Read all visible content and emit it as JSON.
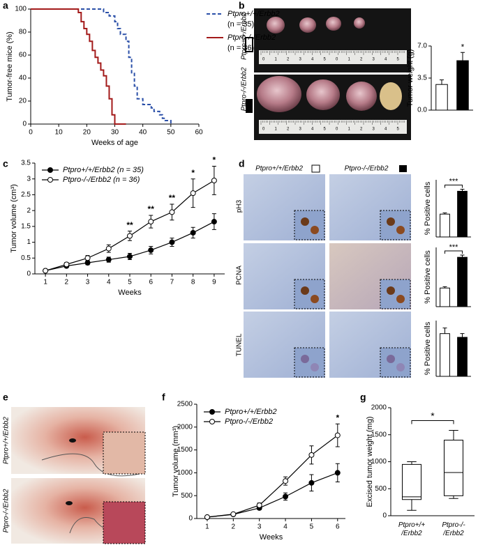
{
  "figure": {
    "panel_labels": [
      "a",
      "b",
      "c",
      "d",
      "e",
      "f",
      "g"
    ],
    "b_row_labels": [
      "Ptpro+/+/Erbb2",
      "Ptpro-/-/Erbb2"
    ],
    "ruler_labels": [
      "0",
      "1",
      "2",
      "3",
      "4",
      "5",
      "0",
      "1",
      "2",
      "3",
      "4",
      "5"
    ],
    "d_column_labels": [
      "Ptpro+/+/Erbb2",
      "Ptpro-/-/Erbb2"
    ],
    "d_row_labels": [
      "pH3",
      "PCNA",
      "TUNEL"
    ],
    "e_row_labels": [
      "Ptpro+/+/Erbb2",
      "Ptpro-/-/Erbb2"
    ]
  },
  "chart_data": [
    {
      "type": "line",
      "step": true,
      "x_label": "Weeks of age",
      "y_label": "Tumor-free mice (%)",
      "xlim": [
        0,
        60
      ],
      "xticks": [
        0,
        10,
        20,
        30,
        40,
        50,
        60
      ],
      "ylim": [
        0,
        100
      ],
      "yticks": [
        0,
        20,
        40,
        60,
        80,
        100
      ],
      "legend": "upper right",
      "series": [
        {
          "name": "Ptpro+/+/Erbb2",
          "n_label": "(n = 35)",
          "color": "#2a4fa8",
          "line_style": "dashed",
          "x": [
            0,
            26,
            28,
            30,
            31,
            32,
            34,
            35,
            36,
            37,
            38,
            40,
            43,
            44,
            46,
            47,
            48,
            50
          ],
          "values": [
            100,
            97,
            94,
            89,
            83,
            78,
            72,
            58,
            44,
            33,
            22,
            17,
            14,
            11,
            8,
            5,
            3,
            0
          ]
        },
        {
          "name": "Ptpro-/-/Erbb2",
          "n_label": "(n = 36)",
          "color": "#a31a1a",
          "line_style": "solid",
          "x": [
            0,
            17,
            18,
            19,
            20,
            21,
            22,
            23,
            24,
            25,
            26,
            27,
            28,
            29,
            30,
            34
          ],
          "values": [
            100,
            97,
            89,
            83,
            78,
            72,
            64,
            58,
            53,
            47,
            42,
            33,
            22,
            8,
            0,
            0
          ]
        }
      ]
    },
    {
      "type": "bar",
      "y_label": "Tumor weight (g)",
      "categories": [
        null,
        null
      ],
      "values": [
        2.8,
        5.4
      ],
      "errors": [
        0.5,
        0.9
      ],
      "colors": [
        "#ffffff",
        "#000000"
      ],
      "ylim": [
        0,
        7
      ],
      "yticks": [
        {
          "value": 0,
          "label": "0.0"
        },
        3.5,
        {
          "value": 7,
          "label": "7.0"
        }
      ],
      "annotations": [
        null,
        "*"
      ]
    },
    {
      "type": "line",
      "x_label": "Weeks",
      "y_label": "Tumor volume (cm³)",
      "x": [
        1,
        2,
        3,
        4,
        5,
        6,
        7,
        8,
        9
      ],
      "xlim": [
        0.5,
        9.5
      ],
      "xticks": [
        1,
        2,
        3,
        4,
        5,
        6,
        7,
        8,
        9
      ],
      "ylim": [
        0,
        3.5
      ],
      "yticks": [
        0,
        0.5,
        1,
        1.5,
        2,
        2.5,
        3,
        3.5
      ],
      "legend": "upper left",
      "series": [
        {
          "name": "Ptpro+/+/Erbb2 (n = 35)",
          "color": "#000000",
          "marker": "filled",
          "values": [
            0.1,
            0.25,
            0.35,
            0.45,
            0.55,
            0.75,
            1.0,
            1.3,
            1.65
          ],
          "errors": [
            0.02,
            0.05,
            0.06,
            0.08,
            0.1,
            0.12,
            0.13,
            0.17,
            0.25
          ]
        },
        {
          "name": "Ptpro-/-/Erbb2 (n = 36)",
          "color": "#000000",
          "marker": "open",
          "values": [
            0.1,
            0.3,
            0.5,
            0.8,
            1.2,
            1.65,
            1.95,
            2.55,
            2.95
          ],
          "errors": [
            0.02,
            0.06,
            0.08,
            0.12,
            0.15,
            0.2,
            0.25,
            0.45,
            0.45
          ]
        }
      ],
      "annotations": [
        null,
        null,
        null,
        null,
        "**",
        "**",
        "**",
        "*",
        "*"
      ]
    },
    {
      "type": "bar",
      "y_label": "% Positive cells",
      "categories": [
        null,
        null
      ],
      "values": [
        5.6,
        11.2
      ],
      "errors": [
        0.3,
        0.5
      ],
      "colors": [
        "#ffffff",
        "#000000"
      ],
      "ylim": [
        0,
        14
      ],
      "bracket_annotation": "***"
    },
    {
      "type": "bar",
      "y_label": "% Positive cells",
      "categories": [
        null,
        null
      ],
      "values": [
        8.5,
        22.5
      ],
      "errors": [
        0.6,
        1.0
      ],
      "colors": [
        "#ffffff",
        "#000000"
      ],
      "ylim": [
        0,
        27
      ],
      "bracket_annotation": "***"
    },
    {
      "type": "bar",
      "y_label": "% Positive cells",
      "categories": [
        null,
        null
      ],
      "values": [
        4.6,
        4.2
      ],
      "errors": [
        0.6,
        0.4
      ],
      "colors": [
        "#ffffff",
        "#000000"
      ],
      "ylim": [
        0,
        6
      ]
    },
    {
      "type": "line",
      "x_label": "Weeks",
      "y_label": "Tumor volume (mm³)",
      "x": [
        1,
        2,
        3,
        4,
        5,
        6
      ],
      "xlim": [
        0.6,
        6.3
      ],
      "xticks": [
        1,
        2,
        3,
        4,
        5,
        6
      ],
      "ylim": [
        0,
        2500
      ],
      "yticks": [
        0,
        500,
        1000,
        1500,
        2000,
        2500
      ],
      "legend": "upper left",
      "series": [
        {
          "name": "Ptpro+/+/Erbb2",
          "color": "#000000",
          "marker": "filled",
          "values": [
            30,
            90,
            230,
            480,
            780,
            1000
          ],
          "errors": [
            10,
            15,
            40,
            80,
            180,
            200
          ]
        },
        {
          "name": "Ptpro-/-/Erbb2",
          "color": "#000000",
          "marker": "open",
          "values": [
            30,
            95,
            290,
            820,
            1390,
            1820
          ],
          "errors": [
            10,
            15,
            50,
            90,
            200,
            250
          ]
        }
      ],
      "annotations": [
        null,
        null,
        null,
        null,
        null,
        "*"
      ]
    },
    {
      "type": "box",
      "y_label": "Excised tumor weight (mg)",
      "categories": [
        "Ptpro+/+\n/Erbb2",
        "Ptpro-/-\n/Erbb2"
      ],
      "boxes": [
        {
          "min": 100,
          "q1": 300,
          "median": 350,
          "q3": 950,
          "max": 1000
        },
        {
          "min": 320,
          "q1": 370,
          "median": 800,
          "q3": 1400,
          "max": 1580
        }
      ],
      "ylim": [
        0,
        2000
      ],
      "yticks": [
        0,
        500,
        1000,
        1500,
        2000
      ],
      "bracket_annotation": "*"
    }
  ]
}
